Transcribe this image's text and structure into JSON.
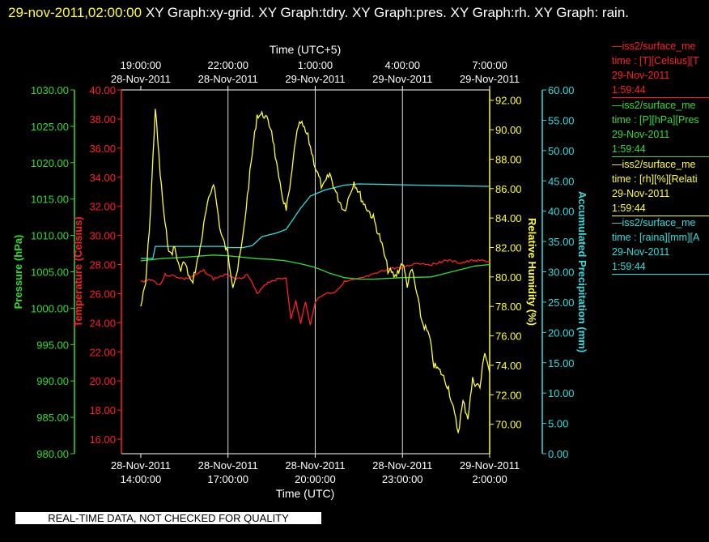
{
  "header": {
    "timestamp": "29-nov-2011,02:00:00",
    "graphs": "  XY Graph:xy-grid.  XY Graph:tdry.  XY Graph:pres.  XY Graph:rh.  XY Graph: rain."
  },
  "footer": {
    "qc_notice": "REAL-TIME DATA, NOT CHECKED FOR QUALITY"
  },
  "legend": [
    {
      "name": "iss2/surface_me",
      "line2": "time : [T][Celsius][T",
      "line3": "29-Nov-2011",
      "line4": "1:59:44",
      "color": "#ff2020"
    },
    {
      "name": "iss2/surface_me",
      "line2": "time : [P][hPa][Pres",
      "line3": "29-Nov-2011",
      "line4": "1:59:44",
      "color": "#33dd33"
    },
    {
      "name": "iss2/surface_me",
      "line2": "time : [rh][%][Relati",
      "line3": "29-Nov-2011",
      "line4": "1:59:44",
      "color": "#ffff33"
    },
    {
      "name": "iss2/surface_me",
      "line2": "time : [raina][mm][A",
      "line3": "29-Nov-2011",
      "line4": "1:59:44",
      "color": "#33dddd"
    }
  ],
  "chart_data": {
    "type": "line",
    "x_bottom": {
      "label": "Time (UTC)",
      "range": [
        "28-Nov-2011 13:20:00",
        "29-Nov-2011 02:00:00"
      ],
      "ticks": [
        {
          "date": "28-Nov-2011",
          "time": "14:00:00",
          "value": "28-Nov-2011 14:00:00"
        },
        {
          "date": "28-Nov-2011",
          "time": "17:00:00",
          "value": "28-Nov-2011 17:00:00"
        },
        {
          "date": "28-Nov-2011",
          "time": "20:00:00",
          "value": "28-Nov-2011 20:00:00"
        },
        {
          "date": "28-Nov-2011",
          "time": "23:00:00",
          "value": "28-Nov-2011 23:00:00"
        },
        {
          "date": "29-Nov-2011",
          "time": "2:00:00",
          "value": "29-Nov-2011 02:00:00"
        }
      ]
    },
    "x_top": {
      "label": "Time (UTC+5)",
      "ticks": [
        {
          "time": "19:00:00",
          "date": "28-Nov-2011"
        },
        {
          "time": "22:00:00",
          "date": "28-Nov-2011"
        },
        {
          "time": "1:00:00",
          "date": "29-Nov-2011"
        },
        {
          "time": "4:00:00",
          "date": "29-Nov-2011"
        },
        {
          "time": "7:00:00",
          "date": "29-Nov-2011"
        }
      ]
    },
    "grid": "vertical",
    "axes": {
      "pressure": {
        "label": "Pressure (hPa)",
        "range": [
          980,
          1030
        ],
        "ticks": [
          "1030.00",
          "1025.00",
          "1020.00",
          "1015.00",
          "1010.00",
          "1005.00",
          "1000.00",
          "995.00",
          "990.00",
          "985.00",
          "980.00"
        ],
        "color": "#33dd33"
      },
      "temperature": {
        "label": "Temperature (Celsius)",
        "range": [
          15,
          40
        ],
        "ticks": [
          "40.00",
          "38.00",
          "36.00",
          "34.00",
          "32.00",
          "30.00",
          "28.00",
          "26.00",
          "24.00",
          "22.00",
          "20.00",
          "18.00",
          "16.00"
        ],
        "color": "#ff2020"
      },
      "humidity": {
        "label": "Relative Humidity (%)",
        "range": [
          68,
          92.7
        ],
        "ticks": [
          "92.00",
          "90.00",
          "88.00",
          "86.00",
          "84.00",
          "82.00",
          "80.00",
          "78.00",
          "76.00",
          "74.00",
          "72.00",
          "70.00"
        ],
        "color": "#ffff33"
      },
      "precipitation": {
        "label": "Accumulated Precipitation (mm)",
        "range": [
          0,
          60
        ],
        "ticks": [
          "60.00",
          "55.00",
          "50.00",
          "45.00",
          "40.00",
          "35.00",
          "30.00",
          "25.00",
          "20.00",
          "15.00",
          "10.00",
          "5.00",
          "0.00"
        ],
        "color": "#33dddd"
      }
    },
    "series": [
      {
        "axis": "temperature",
        "color": "#ff2020",
        "points": [
          [
            "28-Nov-2011 14:00:00",
            26.8
          ],
          [
            "28-Nov-2011 14:20:00",
            27.0
          ],
          [
            "28-Nov-2011 14:40:00",
            26.6
          ],
          [
            "28-Nov-2011 14:50:00",
            27.3
          ],
          [
            "28-Nov-2011 15:10:00",
            27.2
          ],
          [
            "28-Nov-2011 15:30:00",
            27.0
          ],
          [
            "28-Nov-2011 15:50:00",
            27.2
          ],
          [
            "28-Nov-2011 16:10:00",
            27.6
          ],
          [
            "28-Nov-2011 16:30:00",
            27.0
          ],
          [
            "28-Nov-2011 16:45:00",
            27.2
          ],
          [
            "28-Nov-2011 17:00:00",
            27.3
          ],
          [
            "28-Nov-2011 17:20:00",
            27.0
          ],
          [
            "28-Nov-2011 17:40:00",
            27.3
          ],
          [
            "28-Nov-2011 17:50:00",
            26.7
          ],
          [
            "28-Nov-2011 18:00:00",
            26.0
          ],
          [
            "28-Nov-2011 18:15:00",
            26.6
          ],
          [
            "28-Nov-2011 18:30:00",
            26.9
          ],
          [
            "28-Nov-2011 18:45:00",
            27.0
          ],
          [
            "28-Nov-2011 19:00:00",
            27.1
          ],
          [
            "28-Nov-2011 19:10:00",
            24.2
          ],
          [
            "28-Nov-2011 19:20:00",
            25.5
          ],
          [
            "28-Nov-2011 19:30:00",
            23.9
          ],
          [
            "28-Nov-2011 19:40:00",
            25.5
          ],
          [
            "28-Nov-2011 19:50:00",
            23.8
          ],
          [
            "28-Nov-2011 20:00:00",
            25.5
          ],
          [
            "28-Nov-2011 20:20:00",
            26.0
          ],
          [
            "28-Nov-2011 20:40:00",
            26.1
          ],
          [
            "28-Nov-2011 21:00:00",
            26.8
          ],
          [
            "28-Nov-2011 21:30:00",
            27.0
          ],
          [
            "28-Nov-2011 22:00:00",
            27.3
          ],
          [
            "28-Nov-2011 22:30:00",
            27.7
          ],
          [
            "28-Nov-2011 23:00:00",
            27.8
          ],
          [
            "28-Nov-2011 23:30:00",
            28.1
          ],
          [
            "29-Nov-2011 00:00:00",
            28.0
          ],
          [
            "29-Nov-2011 00:30:00",
            28.3
          ],
          [
            "29-Nov-2011 01:00:00",
            28.1
          ],
          [
            "29-Nov-2011 01:30:00",
            28.3
          ],
          [
            "29-Nov-2011 02:00:00",
            28.2
          ]
        ]
      },
      {
        "axis": "pressure",
        "color": "#33dd33",
        "points": [
          [
            "28-Nov-2011 14:00:00",
            1006.5
          ],
          [
            "28-Nov-2011 14:40:00",
            1006.8
          ],
          [
            "28-Nov-2011 15:30:00",
            1007.0
          ],
          [
            "28-Nov-2011 16:30:00",
            1007.3
          ],
          [
            "28-Nov-2011 17:00:00",
            1007.2
          ],
          [
            "28-Nov-2011 17:30:00",
            1007.0
          ],
          [
            "28-Nov-2011 18:00:00",
            1006.8
          ],
          [
            "28-Nov-2011 18:30:00",
            1006.7
          ],
          [
            "28-Nov-2011 19:00:00",
            1006.5
          ],
          [
            "28-Nov-2011 19:30:00",
            1006.1
          ],
          [
            "28-Nov-2011 20:00:00",
            1005.6
          ],
          [
            "28-Nov-2011 20:30:00",
            1004.8
          ],
          [
            "28-Nov-2011 21:00:00",
            1004.2
          ],
          [
            "28-Nov-2011 21:30:00",
            1004.0
          ],
          [
            "28-Nov-2011 22:00:00",
            1004.0
          ],
          [
            "28-Nov-2011 23:00:00",
            1004.2
          ],
          [
            "29-Nov-2011 00:00:00",
            1004.3
          ],
          [
            "29-Nov-2011 00:30:00",
            1004.8
          ],
          [
            "29-Nov-2011 01:00:00",
            1005.3
          ],
          [
            "29-Nov-2011 01:30:00",
            1005.8
          ],
          [
            "29-Nov-2011 02:00:00",
            1006.0
          ]
        ]
      },
      {
        "axis": "precipitation",
        "color": "#33dddd",
        "points": [
          [
            "28-Nov-2011 14:00:00",
            32.2
          ],
          [
            "28-Nov-2011 14:25:00",
            32.2
          ],
          [
            "28-Nov-2011 14:30:00",
            34.2
          ],
          [
            "28-Nov-2011 16:50:00",
            34.2
          ],
          [
            "28-Nov-2011 17:00:00",
            34.0
          ],
          [
            "28-Nov-2011 17:30:00",
            34.0
          ],
          [
            "28-Nov-2011 17:50:00",
            34.3
          ],
          [
            "28-Nov-2011 18:10:00",
            35.8
          ],
          [
            "28-Nov-2011 18:40:00",
            36.4
          ],
          [
            "28-Nov-2011 19:00:00",
            37.0
          ],
          [
            "28-Nov-2011 19:30:00",
            40.5
          ],
          [
            "28-Nov-2011 19:50:00",
            42.5
          ],
          [
            "28-Nov-2011 20:20:00",
            43.5
          ],
          [
            "28-Nov-2011 21:00:00",
            44.3
          ],
          [
            "28-Nov-2011 21:30:00",
            44.5
          ],
          [
            "28-Nov-2011 22:30:00",
            44.4
          ],
          [
            "28-Nov-2011 23:30:00",
            44.3
          ],
          [
            "29-Nov-2011 00:30:00",
            44.2
          ],
          [
            "29-Nov-2011 02:00:00",
            44.1
          ]
        ]
      },
      {
        "axis": "humidity",
        "color": "#ffff33",
        "points": [
          [
            "28-Nov-2011 14:00:00",
            78.0
          ],
          [
            "28-Nov-2011 14:10:00",
            79.5
          ],
          [
            "28-Nov-2011 14:20:00",
            84.5
          ],
          [
            "28-Nov-2011 14:30:00",
            91.5
          ],
          [
            "28-Nov-2011 14:40:00",
            87.0
          ],
          [
            "28-Nov-2011 14:50:00",
            83.5
          ],
          [
            "28-Nov-2011 15:00:00",
            81.5
          ],
          [
            "28-Nov-2011 15:10:00",
            82.0
          ],
          [
            "28-Nov-2011 15:20:00",
            80.5
          ],
          [
            "28-Nov-2011 15:30:00",
            81.0
          ],
          [
            "28-Nov-2011 15:45:00",
            79.5
          ],
          [
            "28-Nov-2011 16:00:00",
            81.5
          ],
          [
            "28-Nov-2011 16:15:00",
            84.5
          ],
          [
            "28-Nov-2011 16:30:00",
            86.5
          ],
          [
            "28-Nov-2011 16:45:00",
            83.0
          ],
          [
            "28-Nov-2011 17:00:00",
            81.5
          ],
          [
            "28-Nov-2011 17:10:00",
            79.5
          ],
          [
            "28-Nov-2011 17:20:00",
            80.5
          ],
          [
            "28-Nov-2011 17:30:00",
            82.5
          ],
          [
            "28-Nov-2011 17:45:00",
            87.0
          ],
          [
            "28-Nov-2011 18:00:00",
            91.0
          ],
          [
            "28-Nov-2011 18:15:00",
            91.0
          ],
          [
            "28-Nov-2011 18:30:00",
            90.0
          ],
          [
            "28-Nov-2011 18:45:00",
            86.5
          ],
          [
            "28-Nov-2011 19:00:00",
            84.5
          ],
          [
            "28-Nov-2011 19:10:00",
            86.5
          ],
          [
            "28-Nov-2011 19:20:00",
            89.5
          ],
          [
            "28-Nov-2011 19:30:00",
            90.5
          ],
          [
            "28-Nov-2011 19:45:00",
            89.5
          ],
          [
            "28-Nov-2011 20:00:00",
            87.5
          ],
          [
            "28-Nov-2011 20:15:00",
            86.0
          ],
          [
            "28-Nov-2011 20:30:00",
            87.0
          ],
          [
            "28-Nov-2011 20:45:00",
            85.5
          ],
          [
            "28-Nov-2011 21:00:00",
            84.5
          ],
          [
            "28-Nov-2011 21:20:00",
            86.5
          ],
          [
            "28-Nov-2011 21:40:00",
            85.0
          ],
          [
            "28-Nov-2011 22:00:00",
            84.0
          ],
          [
            "28-Nov-2011 22:15:00",
            82.5
          ],
          [
            "28-Nov-2011 22:30:00",
            80.5
          ],
          [
            "28-Nov-2011 22:45:00",
            80.0
          ],
          [
            "28-Nov-2011 23:00:00",
            81.0
          ],
          [
            "28-Nov-2011 23:10:00",
            79.5
          ],
          [
            "28-Nov-2011 23:20:00",
            80.5
          ],
          [
            "28-Nov-2011 23:40:00",
            77.0
          ],
          [
            "28-Nov-2011 23:55:00",
            76.0
          ],
          [
            "29-Nov-2011 00:05:00",
            74.0
          ],
          [
            "29-Nov-2011 00:20:00",
            73.5
          ],
          [
            "29-Nov-2011 00:35:00",
            72.5
          ],
          [
            "29-Nov-2011 00:45:00",
            71.0
          ],
          [
            "29-Nov-2011 00:55:00",
            69.5
          ],
          [
            "29-Nov-2011 01:05:00",
            71.5
          ],
          [
            "29-Nov-2011 01:15:00",
            70.5
          ],
          [
            "29-Nov-2011 01:25:00",
            73.0
          ],
          [
            "29-Nov-2011 01:40:00",
            72.5
          ],
          [
            "29-Nov-2011 01:50:00",
            75.0
          ],
          [
            "29-Nov-2011 02:00:00",
            73.5
          ]
        ]
      }
    ]
  }
}
